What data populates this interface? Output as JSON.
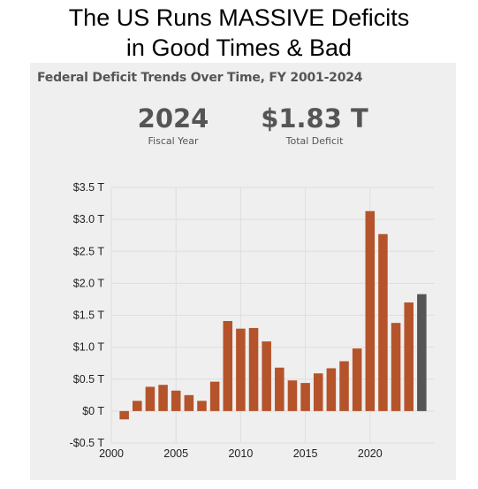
{
  "headline": {
    "line1": "The US Runs MASSIVE Deficits",
    "line2": "in Good Times & Bad"
  },
  "panel": {
    "title": "Federal Deficit Trends Over Time, FY 2001-2024"
  },
  "kpis": {
    "fiscal_year_value": "2024",
    "fiscal_year_label": "Fiscal Year",
    "total_deficit_value": "$1.83 T",
    "total_deficit_label": "Total Deficit"
  },
  "colors": {
    "bar": "#b5532b",
    "highlight_bar": "#555555",
    "panel_bg": "#efefef",
    "grid": "#dedede"
  },
  "chart_data": {
    "type": "bar",
    "title": "Federal Deficit Trends Over Time, FY 2001-2024",
    "xlabel": "",
    "ylabel": "",
    "x": [
      2001,
      2002,
      2003,
      2004,
      2005,
      2006,
      2007,
      2008,
      2009,
      2010,
      2011,
      2012,
      2013,
      2014,
      2015,
      2016,
      2017,
      2018,
      2019,
      2020,
      2021,
      2022,
      2023,
      2024
    ],
    "values": [
      -0.13,
      0.16,
      0.38,
      0.41,
      0.32,
      0.25,
      0.16,
      0.46,
      1.41,
      1.29,
      1.3,
      1.09,
      0.68,
      0.48,
      0.44,
      0.59,
      0.67,
      0.78,
      0.98,
      3.13,
      2.77,
      1.38,
      1.7,
      1.83
    ],
    "highlight": 2024,
    "ylim": [
      -0.5,
      3.5
    ],
    "yticks": [
      -0.5,
      0,
      0.5,
      1.0,
      1.5,
      2.0,
      2.5,
      3.0,
      3.5
    ],
    "ytick_labels": [
      "-$0.5 T",
      "$0 T",
      "$0.5 T",
      "$1.0 T",
      "$1.5 T",
      "$2.0 T",
      "$2.5 T",
      "$3.0 T",
      "$3.5 T"
    ],
    "xlim": [
      2000,
      2025
    ],
    "xticks": [
      2000,
      2005,
      2010,
      2015,
      2020
    ],
    "xtick_labels": [
      "2000",
      "2005",
      "2010",
      "2015",
      "2020"
    ],
    "grid": true,
    "legend": "none"
  }
}
